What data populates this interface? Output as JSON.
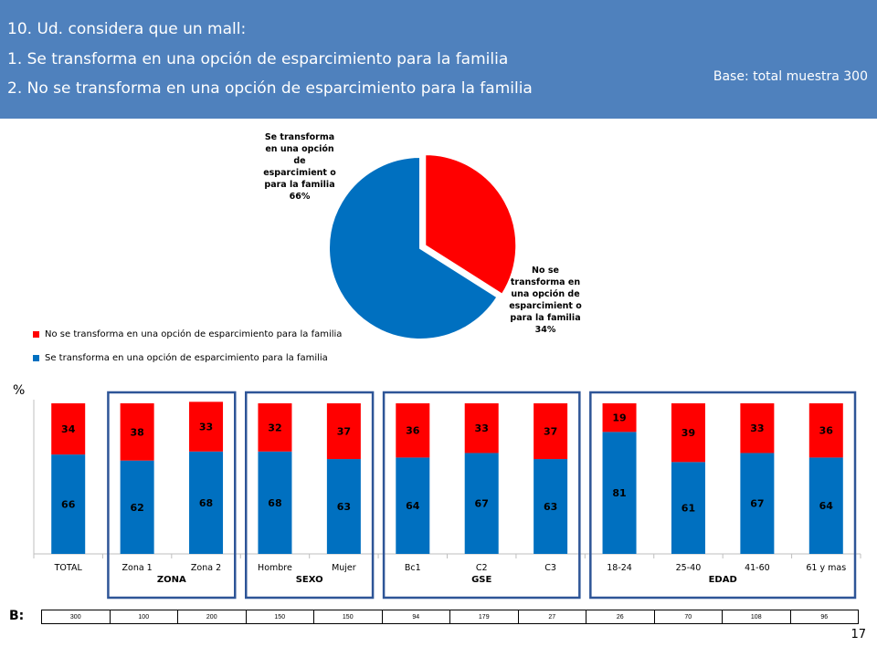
{
  "header": {
    "line1": "10. Ud. considera que un mall:",
    "line2": "1. Se transforma en una opción de esparcimiento para la familia",
    "line3": "2. No se transforma en una opción de esparcimiento para la familia",
    "base": "Base:  total muestra 300",
    "background_color": "#4f81bd"
  },
  "chart_data": [
    {
      "type": "pie",
      "slices": [
        {
          "name": "Se transforma en una opción de esparcimiento para la familia",
          "value": 66,
          "color": "#0070c0"
        },
        {
          "name": "No se transforma en una opción de esparcimiento para la familia",
          "value": 34,
          "color": "#ff0000"
        }
      ],
      "data_labels": [
        "Se transforma en una opción de esparcimient o para la familia 66%",
        "No se transforma en una opción de esparcimient o para la familia 34%"
      ],
      "legend": [
        "No se transforma en una opción de esparcimiento para la familia",
        "Se transforma en una opción de esparcimiento para la familia"
      ],
      "legend_position": "bottom-left"
    },
    {
      "type": "bar",
      "stacked": true,
      "ylabel": "%",
      "ylim": [
        0,
        100
      ],
      "categories": [
        "TOTAL",
        "Zona 1",
        "Zona 2",
        "Hombre",
        "Mujer",
        "Bc1",
        "C2",
        "C3",
        "18-24",
        "25-40",
        "41-60",
        "61 y mas"
      ],
      "groups": [
        {
          "label": "ZONA",
          "categories": [
            "Zona 1",
            "Zona 2"
          ]
        },
        {
          "label": "SEXO",
          "categories": [
            "Hombre",
            "Mujer"
          ]
        },
        {
          "label": "GSE",
          "categories": [
            "Bc1",
            "C2",
            "C3"
          ]
        },
        {
          "label": "EDAD",
          "categories": [
            "18-24",
            "25-40",
            "41-60",
            "61 y mas"
          ]
        }
      ],
      "series": [
        {
          "values": [
            66,
            62,
            68,
            68,
            63,
            64,
            67,
            63,
            81,
            61,
            67,
            64
          ],
          "color": "#0070c0"
        },
        {
          "values": [
            34,
            38,
            33,
            32,
            37,
            36,
            33,
            37,
            19,
            39,
            33,
            36
          ],
          "color": "#ff0000"
        }
      ]
    }
  ],
  "base_row": {
    "label": "B:",
    "values": [
      "300",
      "100",
      "200",
      "150",
      "150",
      "94",
      "179",
      "27",
      "26",
      "70",
      "108",
      "96"
    ]
  },
  "page_number": "17",
  "colors": {
    "blue": "#0070c0",
    "red": "#ff0000",
    "frame": "#2e5597"
  }
}
